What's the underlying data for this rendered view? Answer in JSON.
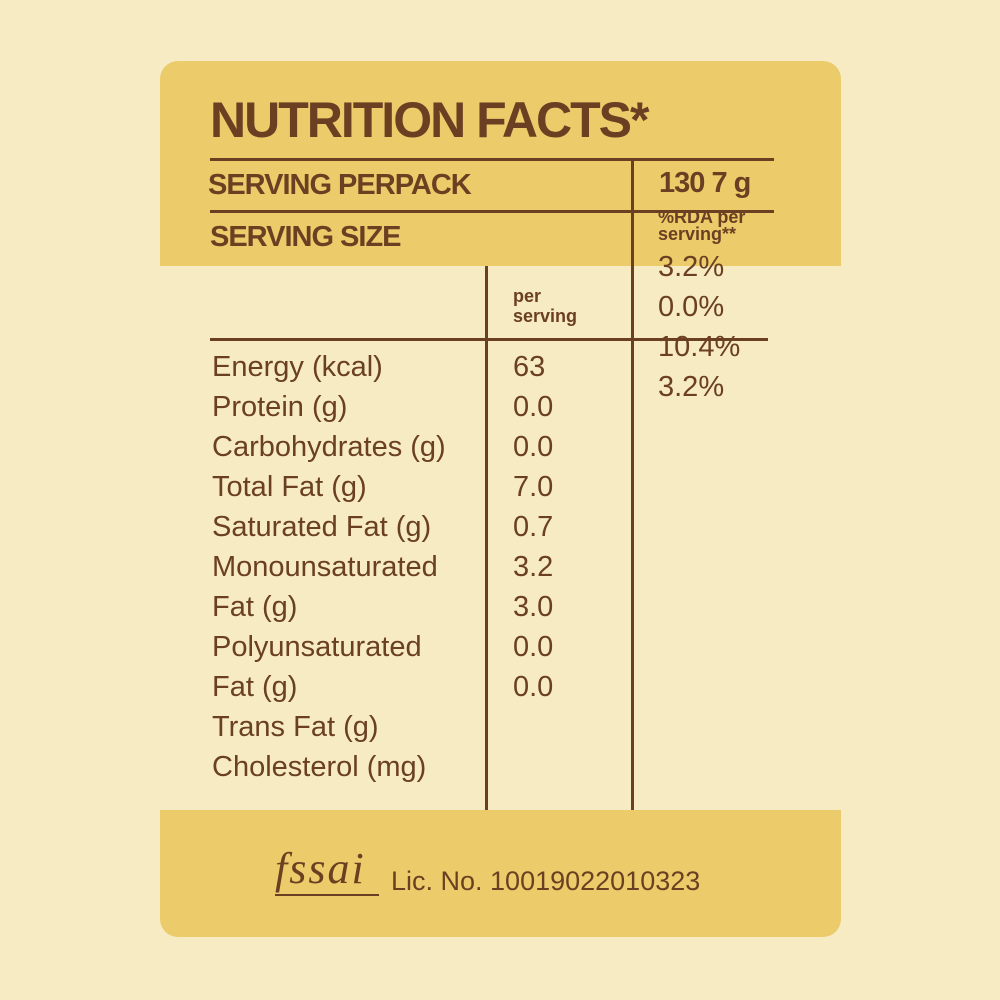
{
  "title": "NUTRITION FACTS*",
  "serving_per_pack_label": "SERVING PERPACK",
  "serving_per_pack_value": "130 7 g",
  "serving_size_label": "SERVING SIZE",
  "rda_header": [
    "%RDA per",
    "serving**"
  ],
  "per_serving_header": [
    "per",
    "serving"
  ],
  "rda_values": [
    "3.2%",
    "0.0%",
    "10.4%",
    "3.2%"
  ],
  "nutrients": [
    "Energy (kcal)",
    "Protein (g)",
    "Carbohydrates (g)",
    "Total Fat (g)",
    "Saturated Fat (g)",
    "Monounsaturated",
    "Fat (g)",
    "Polyunsaturated",
    "Fat (g)",
    "Trans Fat (g)",
    "Cholesterol (mg)"
  ],
  "per_serving_values": [
    "63",
    "0.0",
    "0.0",
    "7.0",
    "0.7",
    "3.2",
    "3.0",
    "0.0",
    "0.0"
  ],
  "fssai_logo_text": "fssai",
  "license": "Lic. No. 10019022010323",
  "colors": {
    "background": "#f7ebc3",
    "band": "#eccb6a",
    "text": "#6b3f22"
  }
}
